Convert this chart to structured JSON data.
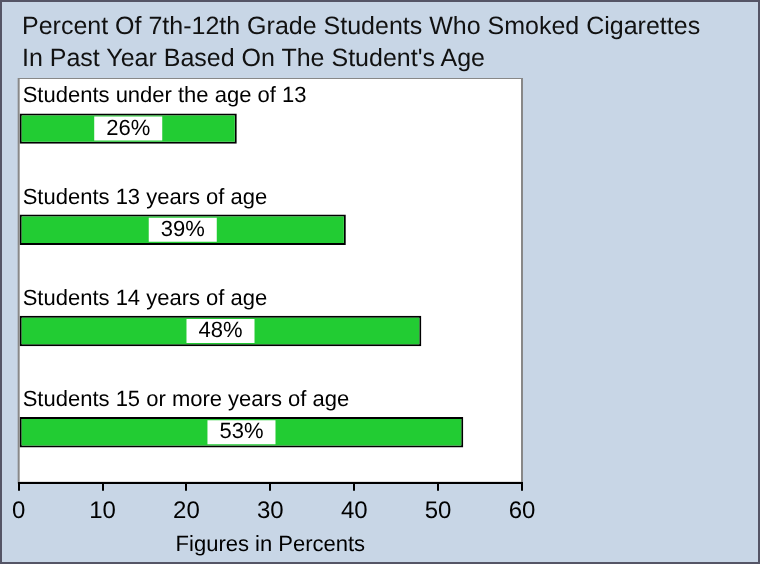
{
  "chart_data": {
    "type": "bar",
    "orientation": "horizontal",
    "title": "Percent Of 7th-12th Grade Students Who Smoked Cigarettes In Past Year Based On The Student's Age",
    "categories": [
      "Students under the age of 13",
      "Students 13 years of age",
      "Students 14 years of age",
      "Students 15 or more years of age"
    ],
    "values": [
      26,
      39,
      48,
      53
    ],
    "value_labels": [
      "26%",
      "39%",
      "48%",
      "53%"
    ],
    "color": "#22cc33",
    "xlabel": "Figures in Percents",
    "xlim": [
      0,
      60
    ],
    "xticks": [
      0,
      10,
      20,
      30,
      40,
      50,
      60
    ],
    "grid": false,
    "legend": false
  }
}
